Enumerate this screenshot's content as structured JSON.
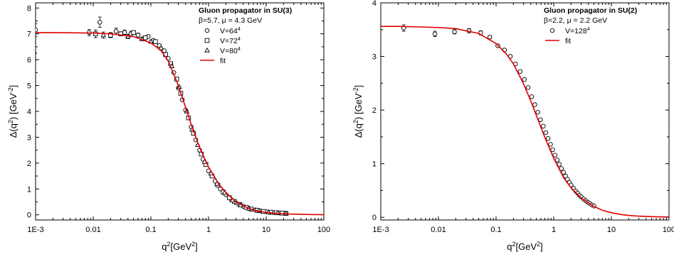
{
  "chart_data": [
    {
      "type": "scatter",
      "title": "Gluon propagator in SU(3)",
      "subtitle": "β=5.7, μ = 4.3 GeV",
      "xlabel": "q²[GeV²]",
      "ylabel": "Δ(q²) [GeV⁻²]",
      "x_scale": "log",
      "xlim": [
        0.001,
        100
      ],
      "ylim": [
        -0.2,
        8.2
      ],
      "x_ticks": [
        0.001,
        0.01,
        0.1,
        1,
        10,
        100
      ],
      "x_tick_labels": [
        "1E-3",
        "0.01",
        "0.1",
        "1",
        "10",
        "100"
      ],
      "y_ticks": [
        0,
        1,
        2,
        3,
        4,
        5,
        6,
        7,
        8
      ],
      "y_tick_labels": [
        "0",
        "1",
        "2",
        "3",
        "4",
        "5",
        "6",
        "7",
        "8"
      ],
      "legend_position": "top-right",
      "grid": false,
      "fit_color": "#e00000",
      "series": [
        {
          "name": "V=64⁴",
          "marker": "circle",
          "x": [
            0.001,
            0.0085,
            0.013,
            0.025,
            0.035,
            0.045,
            0.06,
            0.075,
            0.09,
            0.11,
            0.14,
            0.17,
            0.2,
            0.25,
            0.3,
            0.35,
            0.4,
            0.5,
            0.6,
            0.7,
            0.8,
            1.0,
            1.3,
            1.6,
            2.0,
            2.5,
            3.0,
            4.0,
            5.0,
            6.5,
            8.0,
            10,
            13,
            17,
            21
          ],
          "y": [
            7.15,
            7.05,
            7.45,
            7.1,
            7.05,
            7.0,
            6.95,
            6.8,
            6.9,
            6.75,
            6.55,
            6.35,
            6.05,
            5.5,
            4.9,
            4.45,
            4.05,
            3.4,
            2.9,
            2.5,
            2.15,
            1.7,
            1.3,
            1.0,
            0.78,
            0.58,
            0.46,
            0.33,
            0.25,
            0.19,
            0.15,
            0.12,
            0.09,
            0.07,
            0.06
          ],
          "err": [
            0.25,
            0.12,
            0.2,
            0.12,
            0.1,
            0.1,
            0.08,
            0.06,
            0.06,
            0.05,
            0.05,
            0.04,
            0.04,
            0.04,
            0.03,
            0.03,
            0.03,
            0.03,
            0.02,
            0.02,
            0.02,
            0.02,
            0.02,
            0.02,
            0.01,
            0.01,
            0.01,
            0.01,
            0.01,
            0.01,
            0.01,
            0.01,
            0.01,
            0.01,
            0.01
          ]
        },
        {
          "name": "V=72⁴",
          "marker": "square",
          "x": [
            0.0009,
            0.011,
            0.02,
            0.03,
            0.05,
            0.08,
            0.12,
            0.18,
            0.22,
            0.28,
            0.33,
            0.45,
            0.55,
            0.75,
            0.9,
            1.15,
            1.45,
            1.8,
            2.3,
            2.8,
            3.5,
            4.5,
            5.5,
            7.0,
            9.0,
            12,
            15,
            19,
            22
          ],
          "y": [
            6.55,
            7.0,
            6.95,
            7.0,
            7.05,
            6.85,
            6.7,
            6.2,
            5.85,
            5.25,
            4.7,
            3.75,
            3.15,
            2.35,
            1.95,
            1.5,
            1.15,
            0.88,
            0.66,
            0.52,
            0.4,
            0.29,
            0.22,
            0.17,
            0.13,
            0.1,
            0.08,
            0.065,
            0.055
          ],
          "err": [
            0.3,
            0.15,
            0.1,
            0.08,
            0.06,
            0.05,
            0.05,
            0.04,
            0.04,
            0.03,
            0.03,
            0.03,
            0.02,
            0.02,
            0.02,
            0.02,
            0.02,
            0.01,
            0.01,
            0.01,
            0.01,
            0.01,
            0.01,
            0.01,
            0.01,
            0.01,
            0.01,
            0.01,
            0.01
          ]
        },
        {
          "name": "V=80⁴",
          "marker": "triangle",
          "x": [
            0.00095,
            0.015,
            0.04,
            0.07,
            0.1,
            0.15,
            0.23,
            0.31,
            0.42,
            0.52,
            0.65,
            0.85,
            1.1,
            1.4,
            1.9,
            2.6,
            3.6,
            5.0,
            7.5,
            11,
            16,
            22
          ],
          "y": [
            6.3,
            6.95,
            6.9,
            6.8,
            6.7,
            6.45,
            5.75,
            4.95,
            4.0,
            3.3,
            2.7,
            2.05,
            1.6,
            1.2,
            0.85,
            0.56,
            0.37,
            0.24,
            0.16,
            0.1,
            0.07,
            0.05
          ],
          "err": [
            0.35,
            0.12,
            0.08,
            0.06,
            0.05,
            0.04,
            0.04,
            0.03,
            0.03,
            0.02,
            0.02,
            0.02,
            0.02,
            0.02,
            0.01,
            0.01,
            0.01,
            0.01,
            0.01,
            0.01,
            0.01,
            0.01
          ]
        },
        {
          "name": "fit",
          "marker": "line",
          "x": [
            0.001,
            0.002,
            0.005,
            0.01,
            0.02,
            0.05,
            0.1,
            0.15,
            0.2,
            0.3,
            0.4,
            0.5,
            0.7,
            1,
            1.5,
            2,
            3,
            5,
            7,
            10,
            15,
            20,
            30,
            50,
            70,
            100
          ],
          "y": [
            7.05,
            7.05,
            7.04,
            7.03,
            7.0,
            6.9,
            6.65,
            6.35,
            5.95,
            5.0,
            4.15,
            3.5,
            2.6,
            1.85,
            1.2,
            0.86,
            0.5,
            0.24,
            0.15,
            0.09,
            0.055,
            0.04,
            0.025,
            0.013,
            0.009,
            0.006
          ]
        }
      ]
    },
    {
      "type": "scatter",
      "title": "Gluon propagator in SU(2)",
      "subtitle": "β=2.2, μ = 2.2 GeV",
      "xlabel": "q²[GeV²]",
      "ylabel": "Δ(q²) [GeV⁻²]",
      "x_scale": "log",
      "xlim": [
        0.001,
        100
      ],
      "ylim": [
        -0.05,
        4.0
      ],
      "x_ticks": [
        0.001,
        0.01,
        0.1,
        1,
        10,
        100
      ],
      "x_tick_labels": [
        "1E-3",
        "0.01",
        "0.1",
        "1",
        "10",
        "100"
      ],
      "y_ticks": [
        0,
        1,
        2,
        3,
        4
      ],
      "y_tick_labels": [
        "0",
        "1",
        "2",
        "3",
        "4"
      ],
      "legend_position": "top-right",
      "grid": false,
      "fit_color": "#e00000",
      "series": [
        {
          "name": "V=128⁴",
          "marker": "circle",
          "x": [
            0.0025,
            0.0087,
            0.019,
            0.034,
            0.054,
            0.078,
            0.107,
            0.14,
            0.177,
            0.217,
            0.262,
            0.31,
            0.36,
            0.415,
            0.47,
            0.53,
            0.59,
            0.66,
            0.73,
            0.8,
            0.88,
            0.96,
            1.05,
            1.15,
            1.25,
            1.36,
            1.48,
            1.6,
            1.73,
            1.87,
            2.0,
            2.2,
            2.4,
            2.6,
            2.8,
            3.0,
            3.3,
            3.6,
            3.9,
            4.2,
            4.6,
            5.0
          ],
          "y": [
            3.53,
            3.42,
            3.46,
            3.48,
            3.44,
            3.36,
            3.2,
            3.12,
            3.0,
            2.86,
            2.72,
            2.57,
            2.42,
            2.25,
            2.1,
            1.96,
            1.82,
            1.7,
            1.58,
            1.47,
            1.36,
            1.26,
            1.16,
            1.07,
            0.99,
            0.91,
            0.84,
            0.77,
            0.71,
            0.65,
            0.6,
            0.54,
            0.49,
            0.45,
            0.41,
            0.38,
            0.34,
            0.31,
            0.28,
            0.26,
            0.23,
            0.21
          ],
          "err": [
            0.06,
            0.05,
            0.04,
            0.04,
            0.04,
            0.03,
            0.03,
            0.03,
            0.02,
            0.02,
            0.02,
            0.02,
            0.02,
            0.02,
            0.02,
            0.02,
            0.02,
            0.01,
            0.01,
            0.01,
            0.01,
            0.01,
            0.01,
            0.01,
            0.01,
            0.01,
            0.01,
            0.01,
            0.01,
            0.01,
            0.01,
            0.01,
            0.01,
            0.01,
            0.01,
            0.01,
            0.01,
            0.01,
            0.01,
            0.01,
            0.01,
            0.01
          ]
        },
        {
          "name": "fit",
          "marker": "line",
          "x": [
            0.001,
            0.002,
            0.005,
            0.01,
            0.02,
            0.05,
            0.1,
            0.15,
            0.2,
            0.3,
            0.4,
            0.5,
            0.7,
            1,
            1.5,
            2,
            3,
            5,
            7,
            10,
            15,
            20,
            30,
            50,
            70,
            100
          ],
          "y": [
            3.56,
            3.56,
            3.55,
            3.54,
            3.52,
            3.43,
            3.24,
            3.05,
            2.86,
            2.49,
            2.17,
            1.9,
            1.49,
            1.1,
            0.73,
            0.55,
            0.36,
            0.2,
            0.13,
            0.085,
            0.05,
            0.035,
            0.022,
            0.012,
            0.008,
            0.005
          ]
        }
      ]
    }
  ]
}
